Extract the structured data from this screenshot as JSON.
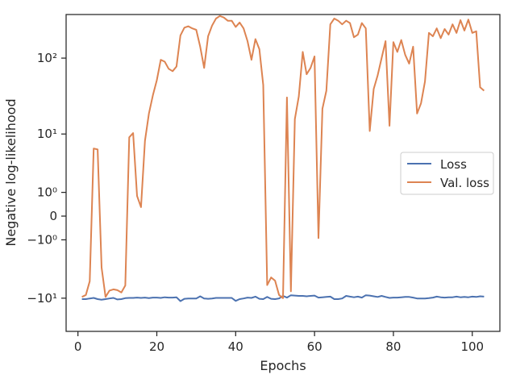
{
  "chart_data": {
    "type": "line",
    "xlabel": "Epochs",
    "ylabel": "Negative log-likelihood",
    "yscale": "symlog",
    "xlim": [
      -3,
      107
    ],
    "ylim": [
      -28,
      360
    ],
    "grid": false,
    "legend_position": "center-right",
    "x_ticks": [
      0,
      20,
      40,
      60,
      80,
      100
    ],
    "x_tick_labels": [
      "0",
      "20",
      "40",
      "60",
      "80",
      "100"
    ],
    "y_ticks": [
      -10,
      -1,
      0,
      1,
      10,
      100
    ],
    "y_tick_labels": [
      "−10¹",
      "−10⁰",
      "0",
      "10⁰",
      "10¹",
      "10²"
    ],
    "colors": {
      "Loss": "#4c72b0",
      "Val. loss": "#dd8452",
      "axes": "#262626"
    },
    "series": [
      {
        "name": "Loss",
        "x": [
          1,
          2,
          3,
          4,
          5,
          6,
          7,
          8,
          9,
          10,
          11,
          12,
          13,
          14,
          15,
          16,
          17,
          18,
          19,
          20,
          21,
          22,
          23,
          24,
          25,
          26,
          27,
          28,
          29,
          30,
          31,
          32,
          33,
          34,
          35,
          36,
          37,
          38,
          39,
          40,
          41,
          42,
          43,
          44,
          45,
          46,
          47,
          48,
          49,
          50,
          51,
          52,
          53,
          54,
          55,
          56,
          57,
          58,
          59,
          60,
          61,
          62,
          63,
          64,
          65,
          66,
          67,
          68,
          69,
          70,
          71,
          72,
          73,
          74,
          75,
          76,
          77,
          78,
          79,
          80,
          81,
          82,
          83,
          84,
          85,
          86,
          87,
          88,
          89,
          90,
          91,
          92,
          93,
          94,
          95,
          96,
          97,
          98,
          99,
          100,
          101,
          102,
          103
        ],
        "y": [
          -10.3,
          -10.3,
          -10.1,
          -9.9,
          -10.3,
          -10.5,
          -10.3,
          -10.1,
          -9.9,
          -10.4,
          -10.3,
          -10.0,
          -9.9,
          -9.9,
          -9.8,
          -9.9,
          -9.8,
          -10.0,
          -9.8,
          -9.8,
          -9.9,
          -9.7,
          -9.8,
          -9.8,
          -9.7,
          -11.0,
          -10.2,
          -10.1,
          -10.1,
          -10.1,
          -9.4,
          -10.1,
          -10.2,
          -10.1,
          -9.9,
          -9.9,
          -9.9,
          -9.9,
          -9.9,
          -10.9,
          -10.3,
          -10.1,
          -9.8,
          -9.9,
          -9.5,
          -10.2,
          -10.3,
          -9.6,
          -10.2,
          -10.3,
          -10.1,
          -9.3,
          -9.8,
          -9.1,
          -9.2,
          -9.3,
          -9.3,
          -9.4,
          -9.3,
          -9.2,
          -9.8,
          -9.7,
          -9.6,
          -9.5,
          -10.3,
          -10.3,
          -10.1,
          -9.3,
          -9.5,
          -9.7,
          -9.5,
          -9.8,
          -9.1,
          -9.2,
          -9.4,
          -9.6,
          -9.3,
          -9.6,
          -9.9,
          -9.8,
          -9.8,
          -9.7,
          -9.6,
          -9.6,
          -9.8,
          -10.1,
          -10.1,
          -10.1,
          -10.0,
          -9.8,
          -9.5,
          -9.7,
          -9.8,
          -9.7,
          -9.7,
          -9.5,
          -9.7,
          -9.6,
          -9.7,
          -9.5,
          -9.6,
          -9.4,
          -9.5
        ]
      },
      {
        "name": "Val. loss",
        "x": [
          1,
          2,
          3,
          4,
          5,
          6,
          7,
          8,
          9,
          10,
          11,
          12,
          13,
          14,
          15,
          16,
          17,
          18,
          19,
          20,
          21,
          22,
          23,
          24,
          25,
          26,
          27,
          28,
          29,
          30,
          31,
          32,
          33,
          34,
          35,
          36,
          37,
          38,
          39,
          40,
          41,
          42,
          43,
          44,
          45,
          46,
          47,
          48,
          49,
          50,
          51,
          52,
          53,
          54,
          55,
          56,
          57,
          58,
          59,
          60,
          61,
          62,
          63,
          64,
          65,
          66,
          67,
          68,
          69,
          70,
          71,
          72,
          73,
          74,
          75,
          76,
          77,
          78,
          79,
          80,
          81,
          82,
          83,
          84,
          85,
          86,
          87,
          88,
          89,
          90,
          91,
          92,
          93,
          94,
          95,
          96,
          97,
          98,
          99,
          100,
          101,
          102,
          103
        ],
        "y": [
          -9.6,
          -9.0,
          -5.7,
          6.2,
          6.0,
          -3.5,
          -9.6,
          -7.8,
          -7.5,
          -7.7,
          -8.3,
          -6.6,
          9.0,
          10.3,
          0.8,
          0.3,
          8.0,
          19,
          33,
          52,
          95,
          90,
          73,
          68,
          78,
          195,
          245,
          255,
          240,
          230,
          140,
          75,
          190,
          260,
          320,
          345,
          330,
          300,
          300,
          250,
          285,
          240,
          165,
          95,
          175,
          130,
          45,
          -6.5,
          -5.0,
          -5.6,
          -9.0,
          -10.0,
          31,
          -8.0,
          16,
          32,
          120,
          62,
          75,
          105,
          -0.9,
          22,
          38,
          270,
          320,
          300,
          270,
          300,
          280,
          185,
          200,
          280,
          240,
          11,
          40,
          60,
          100,
          165,
          13,
          160,
          120,
          170,
          110,
          85,
          140,
          19,
          26,
          50,
          210,
          190,
          240,
          180,
          235,
          200,
          270,
          210,
          305,
          225,
          310,
          210,
          220,
          42,
          38
        ]
      }
    ]
  }
}
